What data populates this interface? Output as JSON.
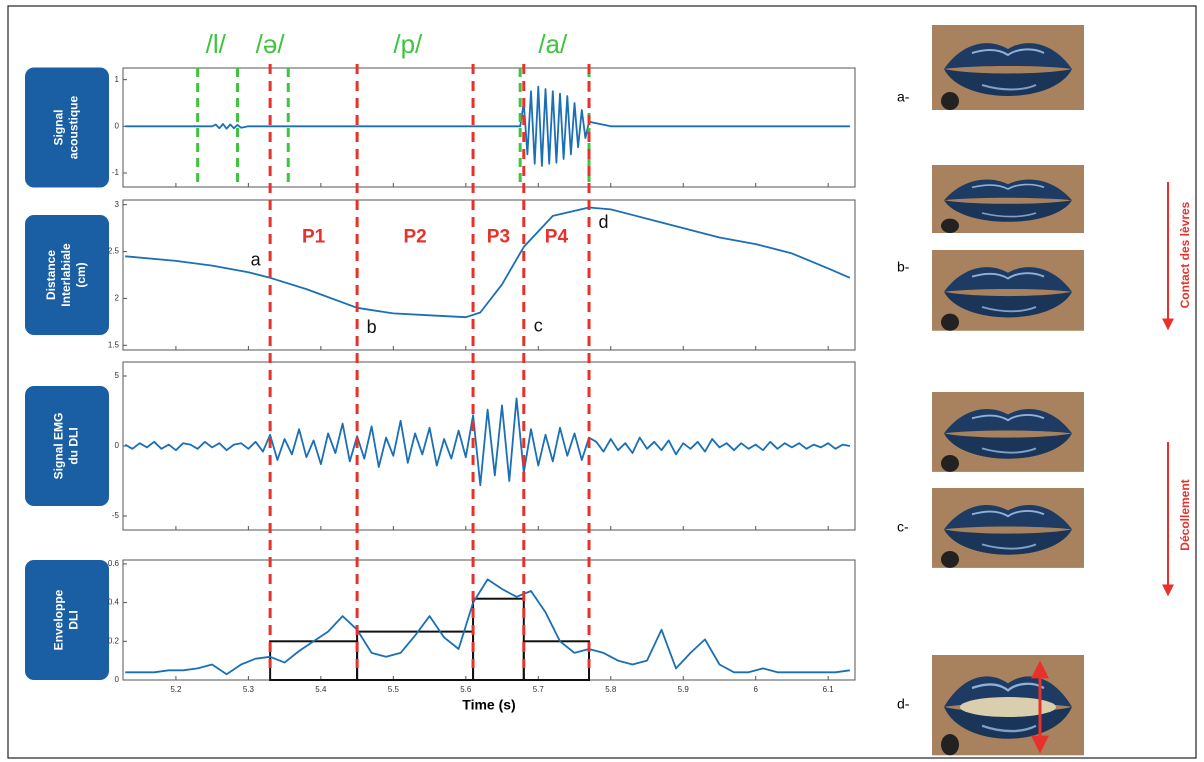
{
  "chart_data": [
    {
      "type": "line",
      "panel_label": [
        "Signal",
        "acoustique"
      ],
      "xlim": [
        5.127,
        6.137
      ],
      "ylim": [
        -1.3,
        1.25
      ],
      "yticks": [
        -1,
        0,
        1
      ],
      "series": [
        {
          "color": "#1a6fb5",
          "x": [
            5.13,
            5.25,
            5.255,
            5.26,
            5.265,
            5.27,
            5.275,
            5.28,
            5.285,
            5.29,
            5.3,
            5.6,
            5.675,
            5.68,
            5.685,
            5.69,
            5.695,
            5.7,
            5.705,
            5.71,
            5.715,
            5.72,
            5.725,
            5.73,
            5.735,
            5.74,
            5.745,
            5.75,
            5.755,
            5.76,
            5.765,
            5.77,
            5.8,
            6.13
          ],
          "values": [
            0,
            0,
            0.04,
            -0.04,
            0.05,
            -0.05,
            0.04,
            -0.04,
            0.03,
            -0.03,
            0,
            0,
            0,
            0.5,
            -0.6,
            0.75,
            -0.8,
            0.85,
            -0.85,
            0.8,
            -0.8,
            0.75,
            -0.78,
            0.7,
            -0.7,
            0.65,
            -0.6,
            0.5,
            -0.45,
            0.35,
            -0.25,
            0.1,
            0,
            0
          ]
        }
      ],
      "markers": {
        "color": "#3ec43e",
        "x": [
          5.23,
          5.285,
          5.355,
          5.675,
          5.77
        ]
      },
      "phonemes": [
        {
          "text": "/l/",
          "x": 5.255,
          "color": "#3ec43e"
        },
        {
          "text": "/ə/",
          "x": 5.33,
          "color": "#3ec43e"
        },
        {
          "text": "/p/",
          "x": 5.52,
          "color": "#3ec43e"
        },
        {
          "text": "/a/",
          "x": 5.72,
          "color": "#3ec43e"
        }
      ]
    },
    {
      "type": "line",
      "panel_label": [
        "Distance",
        "Interlabiale",
        "(cm)"
      ],
      "xlim": [
        5.127,
        6.137
      ],
      "ylim": [
        1.45,
        3.05
      ],
      "yticks": [
        1.5,
        2,
        2.5,
        3
      ],
      "series": [
        {
          "color": "#1a6fb5",
          "x": [
            5.13,
            5.2,
            5.25,
            5.3,
            5.33,
            5.38,
            5.45,
            5.5,
            5.55,
            5.6,
            5.62,
            5.65,
            5.68,
            5.72,
            5.77,
            5.8,
            5.85,
            5.9,
            5.95,
            6.0,
            6.05,
            6.1,
            6.13
          ],
          "values": [
            2.45,
            2.4,
            2.35,
            2.28,
            2.22,
            2.1,
            1.9,
            1.84,
            1.82,
            1.8,
            1.85,
            2.15,
            2.55,
            2.88,
            2.97,
            2.95,
            2.85,
            2.75,
            2.65,
            2.58,
            2.48,
            2.32,
            2.22
          ]
        }
      ],
      "annotations": [
        {
          "text": "a",
          "x": 5.31,
          "y": 2.4,
          "color": "#111111"
        },
        {
          "text": "b",
          "x": 5.47,
          "y": 1.68,
          "color": "#111111"
        },
        {
          "text": "c",
          "x": 5.7,
          "y": 1.7,
          "color": "#111111"
        },
        {
          "text": "d",
          "x": 5.79,
          "y": 2.8,
          "color": "#111111"
        },
        {
          "text": "P1",
          "x": 5.39,
          "y": 2.65,
          "color": "#e8312a"
        },
        {
          "text": "P2",
          "x": 5.53,
          "y": 2.65,
          "color": "#e8312a"
        },
        {
          "text": "P3",
          "x": 5.645,
          "y": 2.65,
          "color": "#e8312a"
        },
        {
          "text": "P4",
          "x": 5.725,
          "y": 2.65,
          "color": "#e8312a"
        }
      ]
    },
    {
      "type": "line",
      "panel_label": [
        "Signal EMG",
        "du DLI"
      ],
      "xlim": [
        5.127,
        6.137
      ],
      "ylim": [
        -6,
        6
      ],
      "yticks": [
        -5,
        0,
        5
      ],
      "series": [
        {
          "color": "#1a6fb5",
          "x": [
            5.13,
            5.14,
            5.15,
            5.16,
            5.17,
            5.18,
            5.19,
            5.2,
            5.21,
            5.22,
            5.23,
            5.24,
            5.25,
            5.26,
            5.27,
            5.28,
            5.29,
            5.3,
            5.31,
            5.32,
            5.33,
            5.34,
            5.35,
            5.36,
            5.37,
            5.38,
            5.39,
            5.4,
            5.41,
            5.42,
            5.43,
            5.44,
            5.45,
            5.46,
            5.47,
            5.48,
            5.49,
            5.5,
            5.51,
            5.52,
            5.53,
            5.54,
            5.55,
            5.56,
            5.57,
            5.58,
            5.59,
            5.6,
            5.61,
            5.62,
            5.63,
            5.64,
            5.65,
            5.66,
            5.67,
            5.68,
            5.69,
            5.7,
            5.71,
            5.72,
            5.73,
            5.74,
            5.75,
            5.76,
            5.77,
            5.78,
            5.79,
            5.8,
            5.81,
            5.82,
            5.83,
            5.84,
            5.85,
            5.86,
            5.87,
            5.88,
            5.89,
            5.9,
            5.91,
            5.92,
            5.93,
            5.94,
            5.95,
            5.96,
            5.97,
            5.98,
            5.99,
            6.0,
            6.01,
            6.02,
            6.03,
            6.04,
            6.05,
            6.06,
            6.07,
            6.08,
            6.09,
            6.1,
            6.11,
            6.12,
            6.13
          ],
          "values": [
            0.1,
            -0.2,
            0.2,
            -0.1,
            0.3,
            -0.2,
            0.1,
            -0.3,
            0.2,
            0.1,
            -0.2,
            0.3,
            -0.1,
            0.2,
            -0.3,
            0.1,
            0.2,
            -0.2,
            0.3,
            -0.4,
            0.8,
            -1.0,
            0.5,
            -0.6,
            1.2,
            -0.8,
            0.4,
            -1.3,
            0.9,
            -0.5,
            1.6,
            -1.1,
            0.7,
            -0.9,
            1.4,
            -1.5,
            0.6,
            -0.7,
            1.8,
            -1.2,
            0.9,
            -0.6,
            1.3,
            -1.4,
            0.5,
            -0.9,
            1.1,
            -0.8,
            2.2,
            -2.8,
            2.6,
            -2.1,
            2.9,
            -2.5,
            3.4,
            -1.9,
            1.2,
            -1.4,
            0.8,
            -1.1,
            1.3,
            -0.7,
            0.9,
            -1.0,
            0.6,
            0.3,
            -0.4,
            0.5,
            -0.3,
            0.2,
            -0.5,
            0.6,
            -0.2,
            0.3,
            -0.3,
            0.4,
            -0.6,
            0.2,
            -0.2,
            0.3,
            -0.4,
            0.5,
            -0.1,
            0.2,
            -0.3,
            0.2,
            -0.2,
            0.1,
            -0.3,
            0.3,
            -0.2,
            0.2,
            -0.1,
            0.2,
            -0.2,
            0.1,
            -0.1,
            0.2,
            -0.2,
            0.1,
            0
          ]
        }
      ]
    },
    {
      "type": "line",
      "panel_label": [
        "Enveloppe",
        "DLI"
      ],
      "xlim": [
        5.127,
        6.137
      ],
      "ylim": [
        0,
        0.62
      ],
      "yticks": [
        0,
        0.2,
        0.4,
        0.6
      ],
      "xticks": [
        5.2,
        5.3,
        5.4,
        5.5,
        5.6,
        5.7,
        5.8,
        5.9,
        6,
        6.1
      ],
      "xlabel": "Time (s)",
      "series": [
        {
          "color": "#1a6fb5",
          "x": [
            5.13,
            5.15,
            5.17,
            5.19,
            5.21,
            5.23,
            5.25,
            5.27,
            5.29,
            5.31,
            5.33,
            5.35,
            5.37,
            5.39,
            5.41,
            5.43,
            5.45,
            5.47,
            5.49,
            5.51,
            5.53,
            5.55,
            5.57,
            5.59,
            5.61,
            5.63,
            5.65,
            5.67,
            5.69,
            5.71,
            5.73,
            5.75,
            5.77,
            5.79,
            5.81,
            5.83,
            5.85,
            5.87,
            5.89,
            5.91,
            5.93,
            5.95,
            5.97,
            5.99,
            6.01,
            6.03,
            6.05,
            6.07,
            6.09,
            6.11,
            6.13
          ],
          "values": [
            0.04,
            0.04,
            0.04,
            0.05,
            0.05,
            0.06,
            0.08,
            0.03,
            0.08,
            0.11,
            0.12,
            0.09,
            0.15,
            0.2,
            0.25,
            0.33,
            0.26,
            0.14,
            0.12,
            0.14,
            0.23,
            0.33,
            0.22,
            0.16,
            0.4,
            0.52,
            0.47,
            0.43,
            0.46,
            0.35,
            0.2,
            0.14,
            0.16,
            0.14,
            0.1,
            0.08,
            0.1,
            0.26,
            0.06,
            0.14,
            0.21,
            0.08,
            0.04,
            0.04,
            0.06,
            0.04,
            0.04,
            0.04,
            0.04,
            0.04,
            0.05
          ]
        }
      ],
      "bars": {
        "color": "#111111",
        "edges": [
          5.33,
          5.45,
          5.61,
          5.68,
          5.77
        ],
        "values": [
          0.2,
          0.25,
          0.42,
          0.2
        ]
      }
    }
  ],
  "boundaries": {
    "color": "#e8312a",
    "x": [
      5.33,
      5.45,
      5.61,
      5.68,
      5.77
    ]
  },
  "photos": {
    "labels": [
      "a-",
      "b-",
      "c-",
      "d-"
    ],
    "notes": [
      "Contact des lèvres",
      "Décollement"
    ]
  }
}
